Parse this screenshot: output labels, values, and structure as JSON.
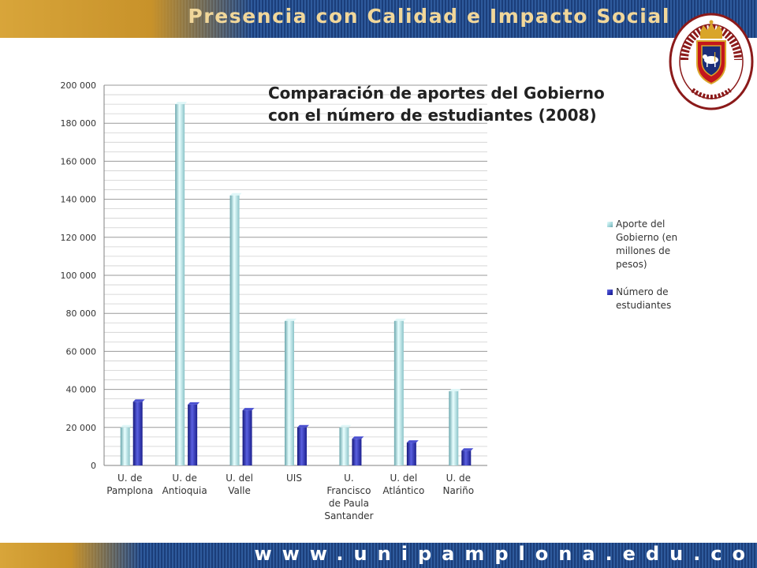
{
  "header": {
    "slogan": "Presencia con Calidad e Impacto Social"
  },
  "footer": {
    "website": "www.unipamplona.edu.co"
  },
  "seal": {
    "top_text": "UNIVERSIDAD DE PAMPLONA",
    "bottom_text": "COLOMBIA"
  },
  "colors": {
    "banner_blue": "#1b3e7a",
    "banner_gold": "#d8a53a",
    "series_light": "#aedfe3",
    "series_dark": "#2a2fb4"
  },
  "chart_data": {
    "type": "bar",
    "title": "Comparación de aportes del Gobierno\ncon el número de estudiantes (2008)",
    "categories": [
      "U. de\nPamplona",
      "U. de\nAntioquia",
      "U. del\nValle",
      "UIS",
      "U.\nFrancisco\nde Paula\nSantander",
      "U. del\nAtlántico",
      "U. de\nNariño"
    ],
    "series": [
      {
        "name": "Aporte del Gobierno (en millones de pesos)",
        "values": [
          20000,
          190000,
          142000,
          76000,
          20000,
          76000,
          39000
        ]
      },
      {
        "name": "Número de estudiantes",
        "values": [
          33500,
          32000,
          29000,
          20000,
          14000,
          12000,
          7800
        ]
      }
    ],
    "ylim": [
      0,
      200000
    ],
    "yticks": [
      "0",
      "20 000",
      "40 000",
      "60 000",
      "80 000",
      "100 000",
      "120 000",
      "140 000",
      "160 000",
      "180 000",
      "200 000"
    ],
    "grid": true,
    "legend": "right"
  }
}
